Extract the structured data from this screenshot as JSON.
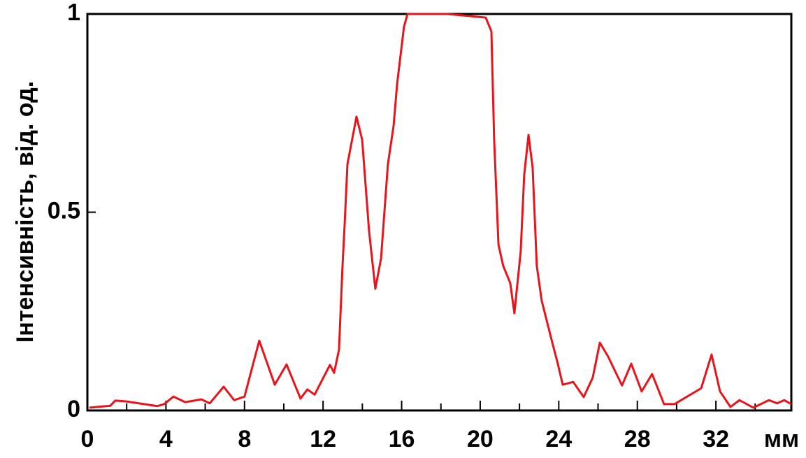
{
  "chart_data": {
    "type": "line",
    "y_label": "Інтенсивність, від. од.",
    "x_label": "мм",
    "xlim": [
      0,
      35.84
    ],
    "ylim": [
      0,
      1
    ],
    "xticks": [
      0,
      4,
      8,
      12,
      16,
      20,
      24,
      28,
      32
    ],
    "xminorticks": [
      2,
      6,
      10,
      14,
      18,
      22,
      26,
      30,
      34
    ],
    "yticks": [
      0,
      0.5,
      1
    ],
    "series": [
      {
        "color": "#e8141b",
        "x": [
          0.1,
          1.17,
          1.42,
          1.96,
          3.56,
          3.91,
          4.38,
          4.98,
          5.8,
          6.23,
          6.94,
          7.47,
          8.0,
          8.75,
          9.54,
          10.14,
          10.85,
          11.2,
          11.57,
          12.35,
          12.56,
          12.81,
          12.99,
          13.1,
          13.24,
          13.7,
          13.99,
          14.34,
          14.66,
          14.95,
          15.3,
          15.59,
          15.77,
          16.12,
          16.3,
          18.33,
          20.28,
          20.57,
          20.71,
          20.93,
          21.17,
          21.53,
          21.74,
          22.06,
          22.24,
          22.46,
          22.67,
          22.88,
          23.13,
          23.67,
          23.95,
          24.2,
          24.73,
          25.27,
          25.73,
          26.09,
          26.51,
          27.22,
          27.69,
          28.22,
          28.75,
          29.36,
          29.89,
          31.25,
          31.78,
          32.21,
          32.74,
          33.2,
          33.91,
          34.7,
          35.12,
          35.48,
          35.84
        ],
        "values": [
          0.007,
          0.012,
          0.025,
          0.023,
          0.011,
          0.016,
          0.035,
          0.021,
          0.028,
          0.018,
          0.06,
          0.026,
          0.035,
          0.176,
          0.065,
          0.116,
          0.03,
          0.053,
          0.04,
          0.115,
          0.095,
          0.153,
          0.365,
          0.471,
          0.621,
          0.741,
          0.683,
          0.453,
          0.307,
          0.383,
          0.621,
          0.718,
          0.824,
          0.968,
          1.0,
          1.0,
          0.991,
          0.956,
          0.683,
          0.418,
          0.365,
          0.321,
          0.245,
          0.4,
          0.594,
          0.695,
          0.612,
          0.365,
          0.277,
          0.171,
          0.118,
          0.065,
          0.072,
          0.034,
          0.083,
          0.171,
          0.136,
          0.063,
          0.118,
          0.048,
          0.092,
          0.016,
          0.016,
          0.056,
          0.141,
          0.048,
          0.009,
          0.026,
          0.007,
          0.026,
          0.018,
          0.026,
          0.016
        ]
      }
    ]
  }
}
